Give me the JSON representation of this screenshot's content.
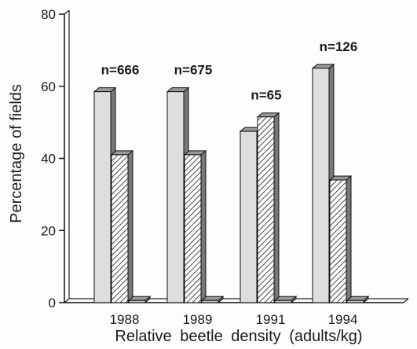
{
  "chart_data": {
    "type": "bar",
    "title": "",
    "xlabel": "Relative beetle density (adults/kg)",
    "ylabel": "Percentage of fields",
    "ylim": [
      0,
      80
    ],
    "yticks": [
      0,
      20,
      40,
      60,
      80
    ],
    "grid": false,
    "categories": [
      "1988",
      "1989",
      "1991",
      "1994"
    ],
    "group_annotations": [
      "n=666",
      "n=675",
      "n=65",
      "n=126"
    ],
    "series": [
      {
        "values": [
          58.5,
          58.5,
          47.5,
          65
        ],
        "fill": "#dedede"
      },
      {
        "values": [
          41,
          41,
          51.5,
          34
        ],
        "fill": "hatched"
      },
      {
        "values": [
          0.6,
          0.6,
          0.6,
          0.6
        ],
        "fill": "#c8c8c8"
      }
    ]
  }
}
